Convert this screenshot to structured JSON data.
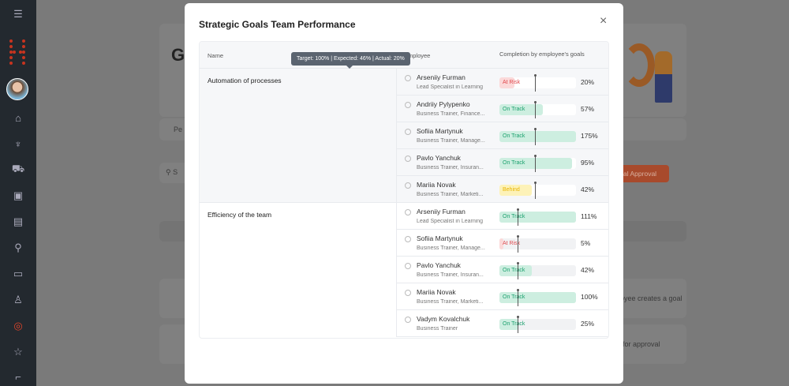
{
  "background": {
    "heading_fragment": "G",
    "tab_fragment": "Pe",
    "search_fragment": "S",
    "approval_button": "al Approval",
    "step1": "oyee creates a goal",
    "step2": "for approval"
  },
  "modal": {
    "title": "Strategic Goals Team Performance",
    "close_label": "×",
    "columns": {
      "name": "Name",
      "employee": "Employee",
      "completion": "Completion by employee's goals"
    },
    "tooltip": "Target: 100% | Expected: 46% | Actual: 20%",
    "groups": [
      {
        "name": "Automation of processes",
        "expected": 46,
        "rows": [
          {
            "name": "Arseniiy Furman",
            "role": "Lead Specialist in Learning",
            "status": "At Risk",
            "actual": 20,
            "pct": "20%"
          },
          {
            "name": "Andriiy Pylypenko",
            "role": "Business Trainer, Finance...",
            "status": "On Track",
            "actual": 57,
            "pct": "57%"
          },
          {
            "name": "Sofiia Martynuk",
            "role": "Business Trainer, Manage...",
            "status": "On Track",
            "actual": 175,
            "pct": "175%"
          },
          {
            "name": "Pavlo Yanchuk",
            "role": "Business Trainer, Insuran...",
            "status": "On Track",
            "actual": 95,
            "pct": "95%"
          },
          {
            "name": "Mariia Novak",
            "role": "Business Trainer, Marketi...",
            "status": "Behind",
            "actual": 42,
            "pct": "42%"
          }
        ]
      },
      {
        "name": "Efficiency of the team",
        "expected": 24,
        "rows": [
          {
            "name": "Arseniiy Furman",
            "role": "Lead Specialist in Learning",
            "status": "On Track",
            "actual": 111,
            "pct": "111%"
          },
          {
            "name": "Sofiia Martynuk",
            "role": "Business Trainer, Manage...",
            "status": "At Risk",
            "actual": 5,
            "pct": "5%"
          },
          {
            "name": "Pavlo Yanchuk",
            "role": "Business Trainer, Insuran...",
            "status": "On Track",
            "actual": 42,
            "pct": "42%"
          },
          {
            "name": "Mariia Novak",
            "role": "Business Trainer, Marketi...",
            "status": "On Track",
            "actual": 100,
            "pct": "100%"
          },
          {
            "name": "Vadym Kovalchuk",
            "role": "Business Trainer",
            "status": "On Track",
            "actual": 25,
            "pct": "25%"
          }
        ]
      }
    ]
  },
  "colors": {
    "on_track_fill": "#cdeee0",
    "on_track_text": "#1aa06d",
    "at_risk_fill": "#fbd9d9",
    "at_risk_text": "#e0474c",
    "behind_fill": "#fdf2b8",
    "behind_text": "#e8b400",
    "accent": "#e1502a"
  }
}
